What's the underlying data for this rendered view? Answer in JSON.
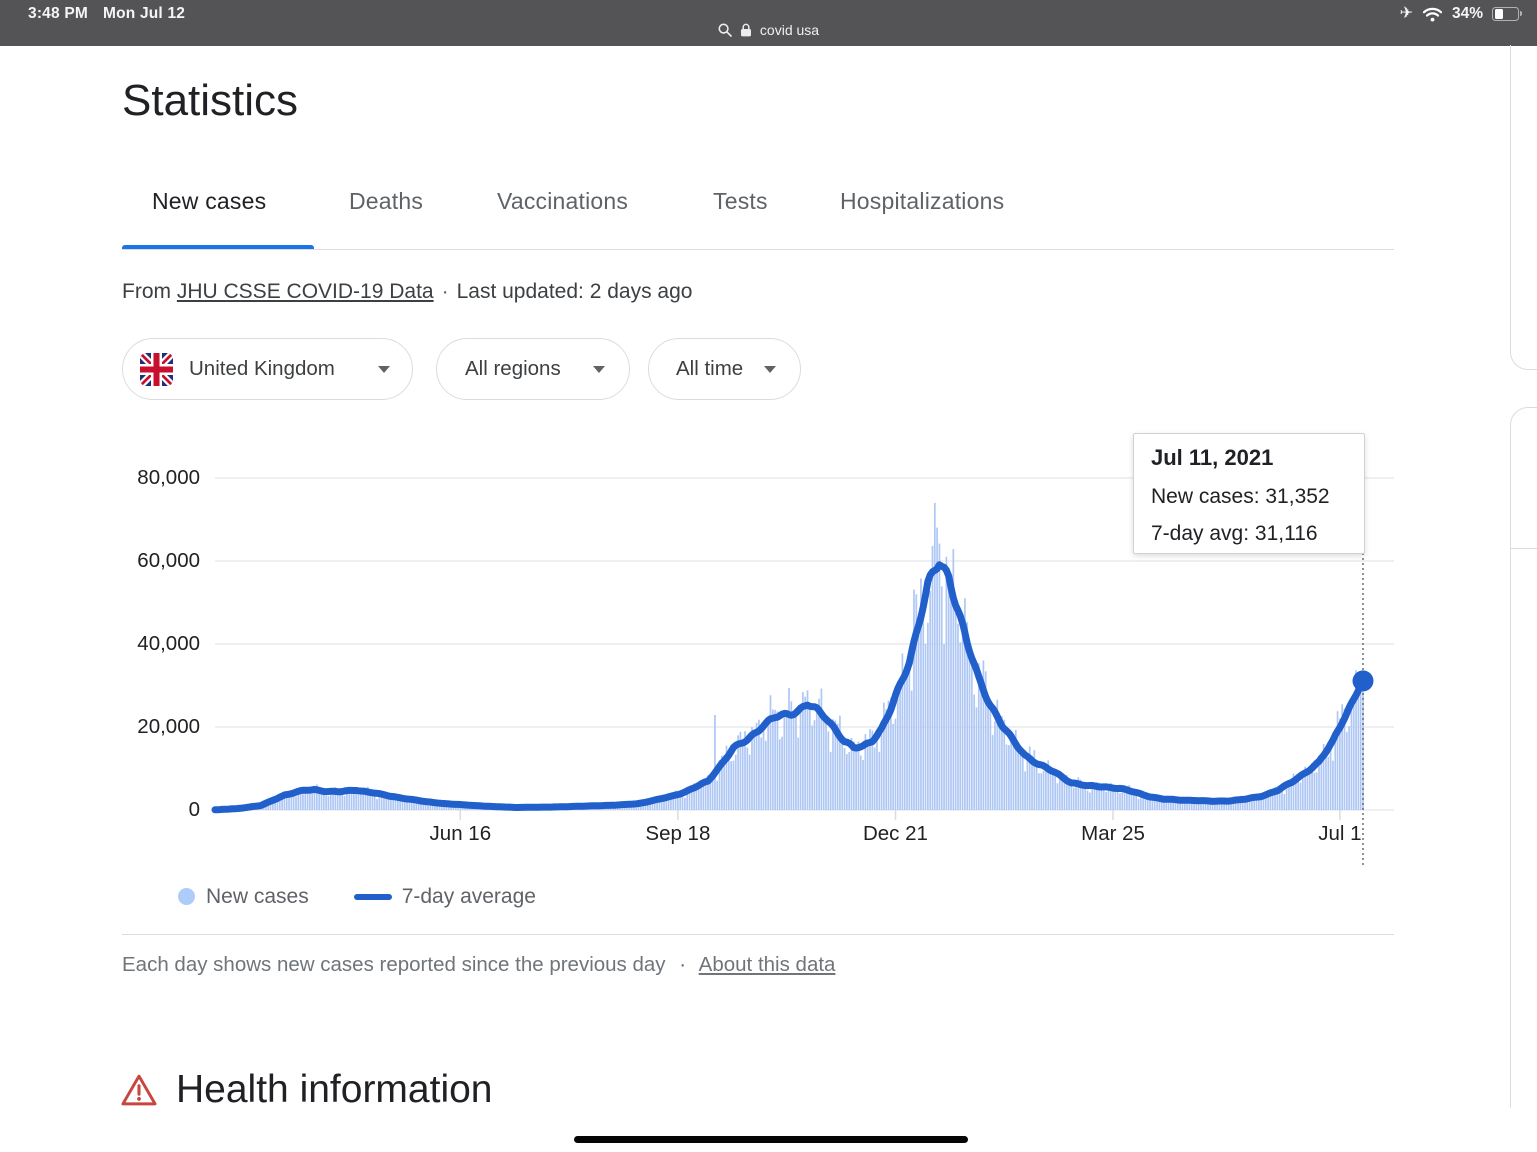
{
  "status_bar": {
    "time": "3:48 PM",
    "date": "Mon Jul 12",
    "address": "covid usa",
    "battery": "34%"
  },
  "page": {
    "title": "Statistics"
  },
  "tabs": [
    {
      "label": "New cases",
      "active": true
    },
    {
      "label": "Deaths",
      "active": false
    },
    {
      "label": "Vaccinations",
      "active": false
    },
    {
      "label": "Tests",
      "active": false
    },
    {
      "label": "Hospitalizations",
      "active": false
    }
  ],
  "source": {
    "from": "From",
    "link": "JHU CSSE COVID-19 Data",
    "sep": "·",
    "updated": "Last updated: 2 days ago"
  },
  "filters": {
    "country": "United Kingdom",
    "region": "All regions",
    "time": "All time"
  },
  "tooltip": {
    "title": "Jul 11, 2021",
    "new_cases": "New cases: 31,352",
    "avg": "7-day avg: 31,116"
  },
  "legend": {
    "new_cases": "New cases",
    "avg": "7-day average"
  },
  "footnote": {
    "text": "Each day shows new cases reported since the previous day",
    "sep": "·",
    "link": "About this data"
  },
  "health": {
    "title": "Health information"
  },
  "chart_data": {
    "type": "bar",
    "title": "COVID-19 new cases, United Kingdom, all time",
    "start_date": "2020-03-02",
    "end_date": "2021-07-11",
    "ylim": [
      0,
      80000
    ],
    "y_ticks": [
      {
        "label": "80,000",
        "value": 80000
      },
      {
        "label": "60,000",
        "value": 60000
      },
      {
        "label": "40,000",
        "value": 40000
      },
      {
        "label": "20,000",
        "value": 20000
      },
      {
        "label": "0",
        "value": 0
      }
    ],
    "x_ticks": [
      {
        "label": "Jun 16",
        "date": "2020-06-16"
      },
      {
        "label": "Sep 18",
        "date": "2020-09-18"
      },
      {
        "label": "Dec 21",
        "date": "2020-12-21"
      },
      {
        "label": "Mar 25",
        "date": "2021-03-25"
      },
      {
        "label": "Jul 1",
        "date": "2021-07-01"
      }
    ],
    "grid": true,
    "legend_position": "bottom",
    "series": [
      {
        "name": "New cases",
        "type": "bar",
        "color": "#aec7f4"
      },
      {
        "name": "7-day average",
        "type": "line",
        "color": "#2160cb"
      }
    ],
    "avg_keypoints": [
      [
        "2020-03-02",
        40
      ],
      [
        "2020-03-12",
        350
      ],
      [
        "2020-03-22",
        1100
      ],
      [
        "2020-04-01",
        3600
      ],
      [
        "2020-04-09",
        4700
      ],
      [
        "2020-04-14",
        4900
      ],
      [
        "2020-04-19",
        4500
      ],
      [
        "2020-04-25",
        4400
      ],
      [
        "2020-05-02",
        4800
      ],
      [
        "2020-05-09",
        4200
      ],
      [
        "2020-05-16",
        3400
      ],
      [
        "2020-05-24",
        2700
      ],
      [
        "2020-06-01",
        2000
      ],
      [
        "2020-06-10",
        1500
      ],
      [
        "2020-06-20",
        1150
      ],
      [
        "2020-07-01",
        800
      ],
      [
        "2020-07-10",
        620
      ],
      [
        "2020-07-20",
        660
      ],
      [
        "2020-08-01",
        800
      ],
      [
        "2020-08-12",
        1000
      ],
      [
        "2020-08-22",
        1150
      ],
      [
        "2020-09-01",
        1550
      ],
      [
        "2020-09-08",
        2350
      ],
      [
        "2020-09-15",
        3300
      ],
      [
        "2020-09-21",
        4300
      ],
      [
        "2020-09-26",
        5600
      ],
      [
        "2020-10-01",
        7000
      ],
      [
        "2020-10-06",
        10500
      ],
      [
        "2020-10-12",
        14800
      ],
      [
        "2020-10-18",
        17000
      ],
      [
        "2020-10-24",
        20000
      ],
      [
        "2020-10-30",
        22300
      ],
      [
        "2020-11-05",
        23200
      ],
      [
        "2020-11-09",
        24000
      ],
      [
        "2020-11-13",
        25500
      ],
      [
        "2020-11-17",
        24000
      ],
      [
        "2020-11-21",
        22300
      ],
      [
        "2020-11-25",
        19500
      ],
      [
        "2020-11-29",
        16500
      ],
      [
        "2020-12-03",
        14900
      ],
      [
        "2020-12-07",
        15300
      ],
      [
        "2020-12-11",
        16900
      ],
      [
        "2020-12-15",
        19500
      ],
      [
        "2020-12-19",
        24200
      ],
      [
        "2020-12-23",
        30000
      ],
      [
        "2020-12-27",
        36000
      ],
      [
        "2020-12-31",
        45000
      ],
      [
        "2021-01-04",
        54000
      ],
      [
        "2021-01-09",
        59600
      ],
      [
        "2021-01-13",
        56500
      ],
      [
        "2021-01-17",
        48500
      ],
      [
        "2021-01-21",
        40000
      ],
      [
        "2021-01-26",
        31500
      ],
      [
        "2021-01-31",
        25500
      ],
      [
        "2021-02-05",
        20500
      ],
      [
        "2021-02-10",
        16500
      ],
      [
        "2021-02-15",
        13200
      ],
      [
        "2021-02-21",
        11000
      ],
      [
        "2021-02-28",
        9000
      ],
      [
        "2021-03-07",
        6600
      ],
      [
        "2021-03-14",
        5800
      ],
      [
        "2021-03-21",
        5600
      ],
      [
        "2021-03-28",
        5200
      ],
      [
        "2021-04-04",
        4200
      ],
      [
        "2021-04-10",
        3200
      ],
      [
        "2021-04-16",
        2600
      ],
      [
        "2021-04-23",
        2400
      ],
      [
        "2021-04-30",
        2300
      ],
      [
        "2021-05-07",
        2100
      ],
      [
        "2021-05-14",
        2200
      ],
      [
        "2021-05-21",
        2600
      ],
      [
        "2021-05-28",
        3300
      ],
      [
        "2021-06-04",
        4700
      ],
      [
        "2021-06-10",
        6600
      ],
      [
        "2021-06-16",
        9000
      ],
      [
        "2021-06-22",
        11500
      ],
      [
        "2021-06-28",
        16500
      ],
      [
        "2021-07-02",
        21500
      ],
      [
        "2021-07-05",
        24500
      ],
      [
        "2021-07-08",
        27800
      ],
      [
        "2021-07-11",
        31116
      ]
    ],
    "weekday_factors": [
      0.88,
      0.78,
      1.02,
      1.12,
      1.14,
      1.1,
      1.0
    ],
    "bar_spikes": {
      "2020-10-04": 22900,
      "2020-11-12": 27300,
      "2020-12-29": 53100,
      "2021-01-01": 55800,
      "2021-01-08": 68050
    },
    "highlight": {
      "date": "2021-07-11",
      "new_cases": 31352,
      "avg": 31116
    }
  }
}
